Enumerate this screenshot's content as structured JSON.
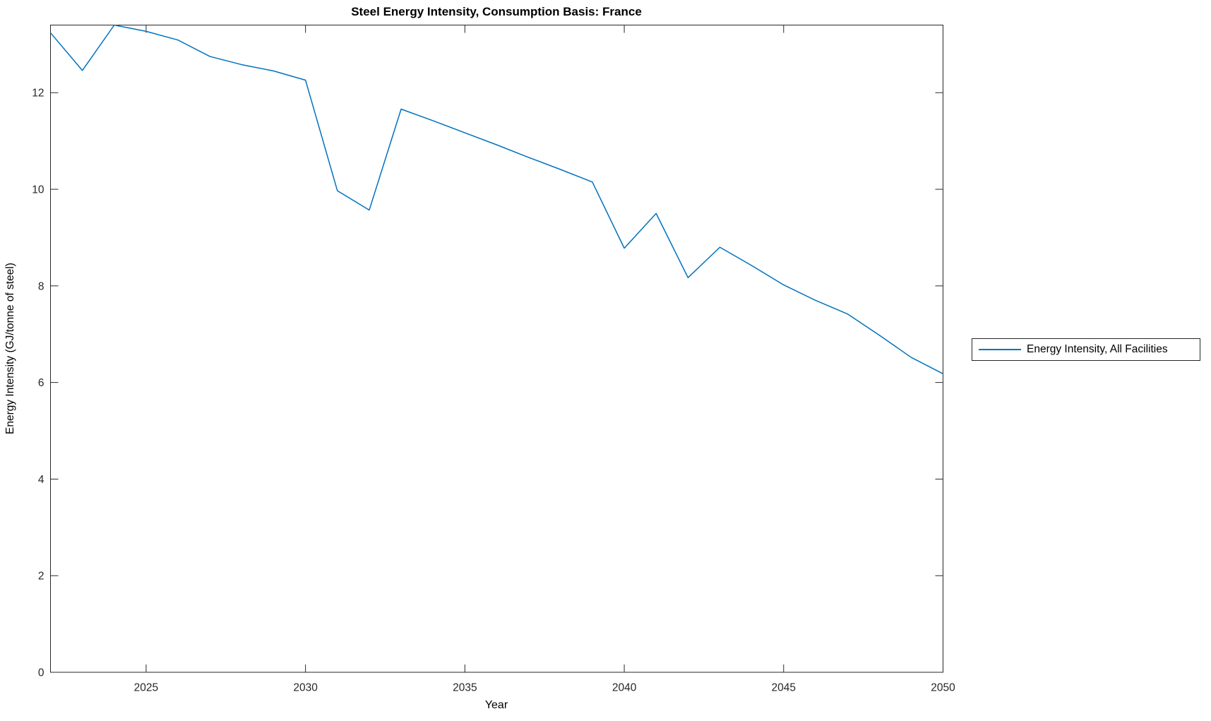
{
  "figure": {
    "background": "#ffffff",
    "axis_color": "#262626",
    "text_color": "#000000"
  },
  "chart_data": {
    "type": "line",
    "title": "Steel Energy Intensity, Consumption Basis: France",
    "xlabel": "Year",
    "ylabel": "Energy Intensity (GJ/tonne of steel)",
    "xlim": [
      2022,
      2050
    ],
    "ylim": [
      0,
      13.4
    ],
    "xticks": [
      2025,
      2030,
      2035,
      2040,
      2045,
      2050
    ],
    "yticks": [
      0,
      2,
      4,
      6,
      8,
      10,
      12
    ],
    "grid": false,
    "box": true,
    "legend": {
      "position": "outside-right",
      "entries": [
        {
          "label": "Energy Intensity, All Facilities",
          "color": "#0072BD"
        }
      ]
    },
    "series": [
      {
        "name": "Energy Intensity, All Facilities",
        "color": "#0072BD",
        "x": [
          2022,
          2023,
          2024,
          2025,
          2026,
          2027,
          2028,
          2029,
          2030,
          2031,
          2032,
          2033,
          2034,
          2035,
          2036,
          2037,
          2038,
          2039,
          2040,
          2041,
          2042,
          2043,
          2044,
          2045,
          2046,
          2047,
          2048,
          2049,
          2050
        ],
        "y": [
          13.24,
          12.46,
          13.4,
          13.27,
          13.09,
          12.75,
          12.58,
          12.45,
          12.26,
          9.97,
          9.57,
          11.66,
          11.42,
          11.17,
          10.92,
          10.66,
          10.41,
          10.15,
          8.78,
          9.5,
          8.17,
          8.8,
          8.42,
          8.02,
          7.7,
          7.42,
          6.98,
          6.52,
          6.18
        ]
      }
    ]
  }
}
